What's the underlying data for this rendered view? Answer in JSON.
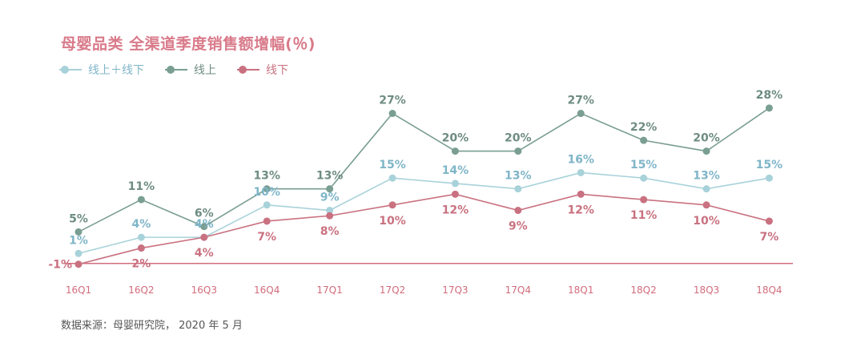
{
  "title": "母婴品类 全渠道季度销售额增幅(％)",
  "source": "数据来源：母婴研究院， 2020 年 5 月",
  "colors": {
    "total": "#a8d2da",
    "total_label": "#7fb5c8",
    "online": "#7a9e92",
    "online_label": "#6e8c82",
    "offline": "#c97180",
    "offline_label": "#c97180",
    "axis": "#d26c7c",
    "title": "#d97a8a"
  },
  "chart_data": {
    "type": "line",
    "title": "母婴品类 全渠道季度销售额增幅(％)",
    "xlabel": "",
    "ylabel": "",
    "categories": [
      "16Q1",
      "16Q2",
      "16Q3",
      "16Q4",
      "17Q1",
      "17Q2",
      "17Q3",
      "17Q4",
      "18Q1",
      "18Q2",
      "18Q3",
      "18Q4"
    ],
    "ylim": [
      -1,
      28
    ],
    "grid": false,
    "legend_position": "top-left",
    "series": [
      {
        "key": "total",
        "name": "线上＋线下",
        "values": [
          1,
          4,
          4,
          10,
          9,
          15,
          14,
          13,
          16,
          15,
          13,
          15
        ]
      },
      {
        "key": "online",
        "name": "线上",
        "values": [
          5,
          11,
          6,
          13,
          13,
          27,
          20,
          20,
          27,
          22,
          20,
          28
        ]
      },
      {
        "key": "offline",
        "name": "线下",
        "values": [
          -1,
          2,
          4,
          7,
          8,
          10,
          12,
          9,
          12,
          11,
          10,
          7
        ]
      }
    ],
    "data_labels": {
      "total": [
        "1%",
        "4%",
        "4%",
        "10%",
        "9%",
        "15%",
        "14%",
        "13%",
        "16%",
        "15%",
        "13%",
        "15%"
      ],
      "online": [
        "5%",
        "11%",
        "6%",
        "13%",
        "13%",
        "27%",
        "20%",
        "20%",
        "27%",
        "22%",
        "20%",
        "28%"
      ],
      "offline": [
        "-1%",
        "2%",
        "4%",
        "7%",
        "8%",
        "10%",
        "12%",
        "9%",
        "12%",
        "11%",
        "10%",
        "7%"
      ]
    }
  }
}
